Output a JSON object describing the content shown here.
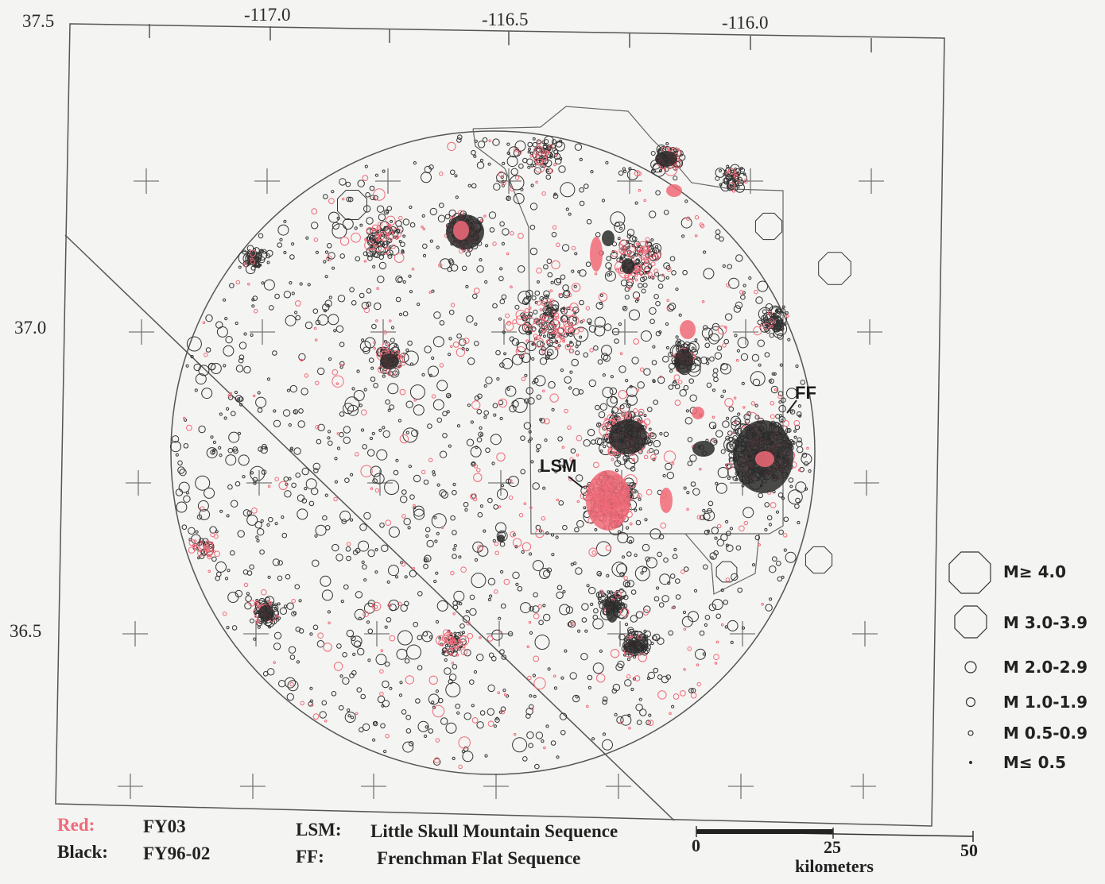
{
  "axes": {
    "lat_labels": [
      "37.5",
      "37.0",
      "36.5"
    ],
    "lon_labels": [
      "-117.0",
      "-116.5",
      "-116.0"
    ]
  },
  "sequences": {
    "lsm": "LSM",
    "ff": "FF"
  },
  "legend": {
    "items": [
      {
        "label": "M≥ 4.0",
        "icon": "large-octagon"
      },
      {
        "label": "M 3.0-3.9",
        "icon": "medium-octagon"
      },
      {
        "label": "M 2.0-2.9",
        "icon": "circle"
      },
      {
        "label": "M 1.0-1.9",
        "icon": "circle"
      },
      {
        "label": "M 0.5-0.9",
        "icon": "circle"
      },
      {
        "label": "M≤ 0.5",
        "icon": "dot"
      }
    ]
  },
  "caption": {
    "red_key": "Red:",
    "red_value": "FY03",
    "black_key": "Black:",
    "black_value": "FY96-02",
    "lsm_key": "LSM:",
    "lsm_value": "Little Skull Mountain Sequence",
    "ff_key": "FF:",
    "ff_value": "Frenchman Flat Sequence"
  },
  "scale_bar": {
    "ticks": [
      "0",
      "25",
      "50"
    ],
    "unit": "kilometers"
  },
  "colors": {
    "red_events": "#f06a78",
    "black_events": "#333333",
    "background": "#f4f4f2"
  }
}
